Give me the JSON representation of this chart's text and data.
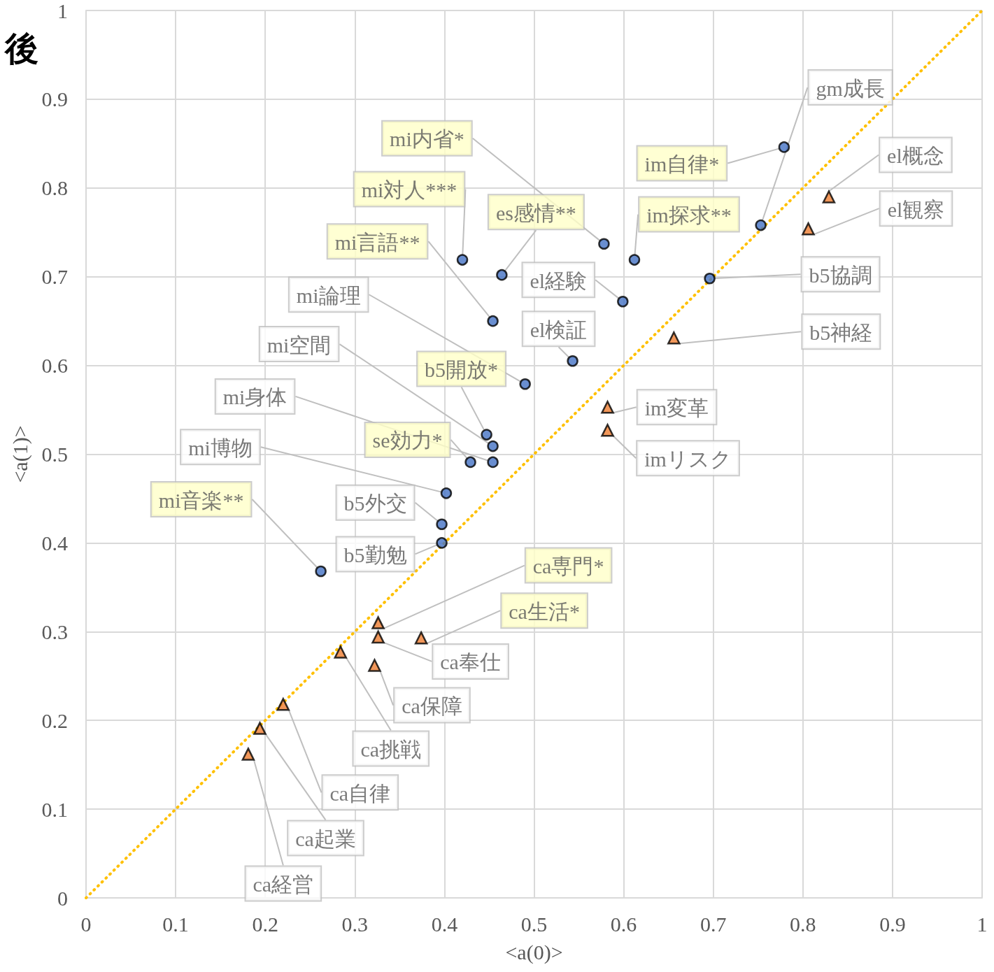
{
  "chart_data": {
    "type": "scatter",
    "title": "後",
    "xlabel": "<a(0)>",
    "ylabel": "<a(1)>",
    "xlim": [
      0,
      1
    ],
    "ylim": [
      0,
      1
    ],
    "xticks": [
      0,
      0.1,
      0.2,
      0.3,
      0.4,
      0.5,
      0.6,
      0.7,
      0.8,
      0.9,
      1
    ],
    "yticks": [
      0,
      0.1,
      0.2,
      0.3,
      0.4,
      0.5,
      0.6,
      0.7,
      0.8,
      0.9,
      1
    ],
    "grid": true,
    "series": [
      {
        "color": "#4472c4",
        "marker": "circle",
        "x": [
          0.779,
          0.753,
          0.578,
          0.612,
          0.464,
          0.42,
          0.696,
          0.599,
          0.454,
          0.543,
          0.49,
          0.447,
          0.454,
          0.429,
          0.454,
          0.402,
          0.397,
          0.397,
          0.262
        ],
        "values": [
          0.846,
          0.758,
          0.737,
          0.719,
          0.702,
          0.719,
          0.698,
          0.672,
          0.65,
          0.605,
          0.579,
          0.522,
          0.509,
          0.491,
          0.491,
          0.456,
          0.421,
          0.4,
          0.368
        ],
        "value_labels": [
          "im自律*",
          "gm成長",
          "mi内省*",
          "im探求**",
          "es感情**",
          "mi対人***",
          "b5協調",
          "el経験",
          "mi言語**",
          "el検証",
          "mi論理",
          "b5開放*",
          "mi空間",
          "se効力*",
          "mi身体",
          "mi博物",
          "b5外交",
          "b5勤勉",
          "mi音楽**"
        ]
      },
      {
        "color": "#ed7d31",
        "marker": "triangle",
        "x": [
          0.829,
          0.806,
          0.656,
          0.582,
          0.582,
          0.326,
          0.326,
          0.374,
          0.322,
          0.284,
          0.22,
          0.194,
          0.181
        ],
        "values": [
          0.79,
          0.754,
          0.631,
          0.553,
          0.527,
          0.31,
          0.294,
          0.293,
          0.262,
          0.277,
          0.218,
          0.191,
          0.162
        ],
        "value_labels": [
          "el概念",
          "el観察",
          "b5神経",
          "im変革",
          "imリスク",
          "ca専門*",
          "ca奉仕",
          "ca生活*",
          "ca保障",
          "ca挑戦",
          "ca自律",
          "ca起業",
          "ca経営"
        ]
      },
      {
        "type": "line",
        "color": "#ffc000",
        "marker": "none",
        "line_style": "dotted",
        "x": [
          0,
          1
        ],
        "values": [
          0,
          1
        ]
      }
    ]
  }
}
